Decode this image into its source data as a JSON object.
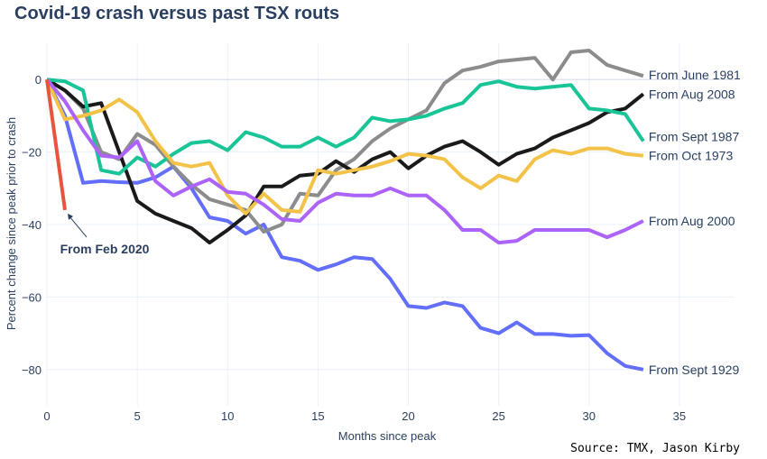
{
  "title": "Covid-19 crash versus past TSX routs",
  "source": "Source: TMX, Jason Kirby",
  "chart_data": {
    "type": "line",
    "title": "Covid-19 crash versus past TSX routs",
    "xlabel": "Months since peak",
    "ylabel": "Percent change since peak prior to crash",
    "xlim": [
      0,
      38
    ],
    "ylim": [
      -90,
      10
    ],
    "x_ticks": [
      0,
      5,
      10,
      15,
      20,
      25,
      30,
      35
    ],
    "y_ticks": [
      0,
      -20,
      -40,
      -60,
      -80
    ],
    "grid": true,
    "legend": "none",
    "series": [
      {
        "name": "From Sept 1929",
        "color": "#636efa",
        "x": [
          0,
          1,
          2,
          3,
          4,
          5,
          6,
          7,
          8,
          9,
          10,
          11,
          12,
          13,
          14,
          15,
          16,
          17,
          18,
          19,
          20,
          21,
          22,
          23,
          24,
          25,
          26,
          27,
          28,
          29,
          30,
          31,
          32,
          33
        ],
        "y": [
          0,
          -10,
          -28.5,
          -28,
          -28.3,
          -28.5,
          -27,
          -24,
          -30,
          -38,
          -39,
          -42.5,
          -40,
          -49,
          -50,
          -52.5,
          -51,
          -49,
          -49.5,
          -55,
          -62.5,
          -63,
          -61.5,
          -62.5,
          -68.5,
          -70,
          -67,
          -70.2,
          -70.2,
          -70.7,
          -70.5,
          -75.5,
          -79,
          -80
        ]
      },
      {
        "name": "From June 1981",
        "color": "#8c8c8c",
        "x": [
          0,
          1,
          2,
          3,
          4,
          5,
          6,
          7,
          8,
          9,
          10,
          11,
          12,
          13,
          14,
          15,
          16,
          17,
          18,
          19,
          20,
          21,
          22,
          23,
          24,
          25,
          26,
          27,
          28,
          29,
          30,
          31,
          32,
          33
        ],
        "y": [
          0,
          -3,
          -8,
          -20,
          -22,
          -15,
          -18,
          -24,
          -29,
          -33,
          -34.5,
          -36,
          -42,
          -40,
          -31.5,
          -32,
          -25,
          -22,
          -17,
          -13.5,
          -11,
          -8.5,
          -1,
          2.5,
          3.5,
          5,
          5.5,
          6,
          0,
          7.5,
          8,
          4,
          2.5,
          1
        ]
      },
      {
        "name": "From Aug 2008",
        "color": "#1a1a1a",
        "x": [
          0,
          1,
          2,
          3,
          4,
          5,
          6,
          7,
          8,
          9,
          10,
          11,
          12,
          13,
          14,
          15,
          16,
          17,
          18,
          19,
          20,
          21,
          22,
          23,
          24,
          25,
          26,
          27,
          28,
          29,
          30,
          31,
          32,
          33
        ],
        "y": [
          0,
          -3,
          -7.5,
          -6.5,
          -20,
          -33.5,
          -37,
          -39,
          -41,
          -45,
          -41.5,
          -37.5,
          -29.5,
          -29.5,
          -26.5,
          -26,
          -22.5,
          -25.5,
          -22,
          -20,
          -24.5,
          -21,
          -18.5,
          -17,
          -20,
          -23.5,
          -20.5,
          -19,
          -16,
          -14,
          -12,
          -9,
          -8,
          -4
        ]
      },
      {
        "name": "From Sept 1987",
        "color": "#19c597",
        "x": [
          0,
          1,
          2,
          3,
          4,
          5,
          6,
          7,
          8,
          9,
          10,
          11,
          12,
          13,
          14,
          15,
          16,
          17,
          18,
          19,
          20,
          21,
          22,
          23,
          24,
          25,
          26,
          27,
          28,
          29,
          30,
          31,
          32,
          33
        ],
        "y": [
          0,
          -0.5,
          -3,
          -25,
          -26,
          -21.5,
          -24,
          -20.5,
          -17.5,
          -17,
          -19.5,
          -14.5,
          -16,
          -18.5,
          -18.5,
          -16,
          -18.5,
          -16,
          -10.5,
          -11.5,
          -11,
          -10,
          -8,
          -6.5,
          -1.5,
          -0.5,
          -2,
          -2.5,
          -2,
          -1.5,
          -8,
          -8.5,
          -9.5,
          -17
        ]
      },
      {
        "name": "From Oct 1973",
        "color": "#f2c249",
        "x": [
          0,
          1,
          2,
          3,
          4,
          5,
          6,
          7,
          8,
          9,
          10,
          11,
          12,
          13,
          14,
          15,
          16,
          17,
          18,
          19,
          20,
          21,
          22,
          23,
          24,
          25,
          26,
          27,
          28,
          29,
          30,
          31,
          32,
          33
        ],
        "y": [
          0,
          -11,
          -10,
          -8.5,
          -5.5,
          -9,
          -17,
          -23,
          -24,
          -23,
          -32,
          -37,
          -31.5,
          -36,
          -36.5,
          -25,
          -26,
          -25,
          -24,
          -22.5,
          -20.5,
          -21,
          -22,
          -27,
          -30,
          -26.5,
          -28,
          -22,
          -19.5,
          -20.5,
          -19,
          -19,
          -20.5,
          -21
        ]
      },
      {
        "name": "From Aug 2000",
        "color": "#ab63fa",
        "x": [
          0,
          1,
          2,
          3,
          4,
          5,
          6,
          7,
          8,
          9,
          10,
          11,
          12,
          13,
          14,
          15,
          16,
          17,
          18,
          19,
          20,
          21,
          22,
          23,
          24,
          25,
          26,
          27,
          28,
          29,
          30,
          31,
          32,
          33
        ],
        "y": [
          0,
          -6,
          -14,
          -21,
          -21.5,
          -17,
          -28,
          -32,
          -29.5,
          -27.5,
          -31,
          -31.5,
          -34.5,
          -38.5,
          -39,
          -34,
          -31.5,
          -32,
          -32,
          -30,
          -32,
          -32,
          -36,
          -41.5,
          -41.5,
          -45,
          -44.5,
          -41.5,
          -41.5,
          -41.5,
          -41.5,
          -43.5,
          -41.5,
          -39
        ]
      },
      {
        "name": "From Feb 2020",
        "color": "#e8553e",
        "x": [
          0,
          1
        ],
        "y": [
          0,
          -36
        ]
      }
    ],
    "annotation": {
      "text": "From Feb 2020",
      "x": 1,
      "y": -36
    }
  }
}
